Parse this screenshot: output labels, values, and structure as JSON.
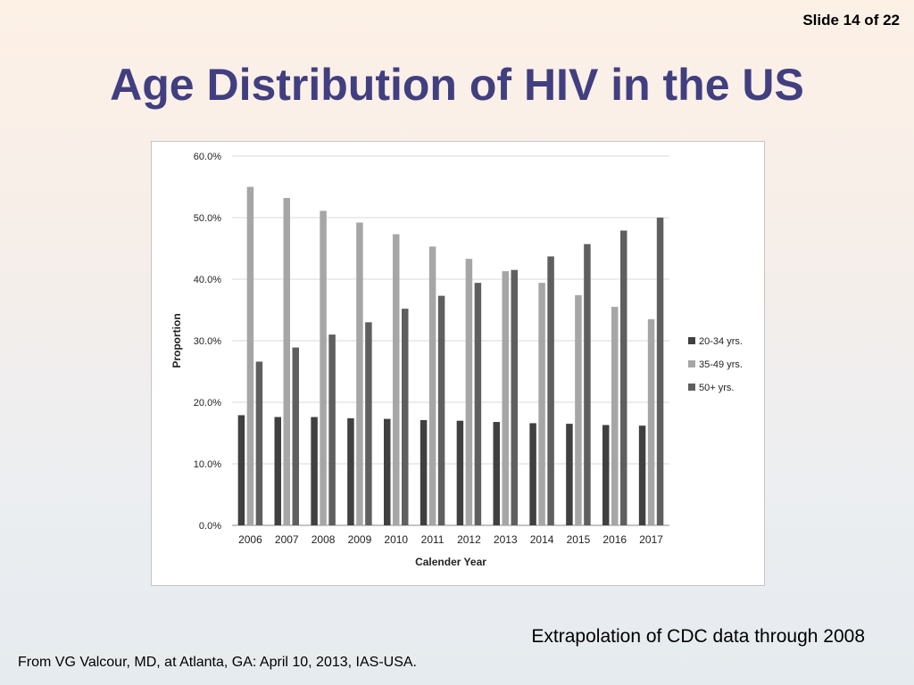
{
  "slide": {
    "counter": "Slide 14 of 22",
    "title": "Age Distribution of HIV in the US",
    "note_right": "Extrapolation of CDC data through 2008",
    "note_left": "From VG Valcour, MD, at Atlanta, GA: April 10, 2013, IAS-USA."
  },
  "chart_data": {
    "type": "bar",
    "title": "",
    "xlabel": "Calender Year",
    "ylabel": "Proportion",
    "ylim": [
      0,
      60
    ],
    "yticks": [
      "0.0%",
      "10.0%",
      "20.0%",
      "30.0%",
      "40.0%",
      "50.0%",
      "60.0%"
    ],
    "grid": true,
    "legend_position": "right",
    "categories": [
      "2006",
      "2007",
      "2008",
      "2009",
      "2010",
      "2011",
      "2012",
      "2013",
      "2014",
      "2015",
      "2016",
      "2017"
    ],
    "series": [
      {
        "name": "20-34 yrs.",
        "color": "#404040",
        "values": [
          17.9,
          17.6,
          17.6,
          17.4,
          17.3,
          17.1,
          17.0,
          16.8,
          16.6,
          16.5,
          16.3,
          16.2
        ]
      },
      {
        "name": "35-49 yrs.",
        "color": "#a6a6a6",
        "values": [
          55.0,
          53.2,
          51.1,
          49.2,
          47.3,
          45.3,
          43.3,
          41.3,
          39.4,
          37.4,
          35.5,
          33.5
        ]
      },
      {
        "name": "50+ yrs.",
        "color": "#5f5f5f",
        "values": [
          26.6,
          28.9,
          31.0,
          33.0,
          35.2,
          37.3,
          39.4,
          41.5,
          43.7,
          45.7,
          47.9,
          50.0
        ]
      }
    ]
  }
}
